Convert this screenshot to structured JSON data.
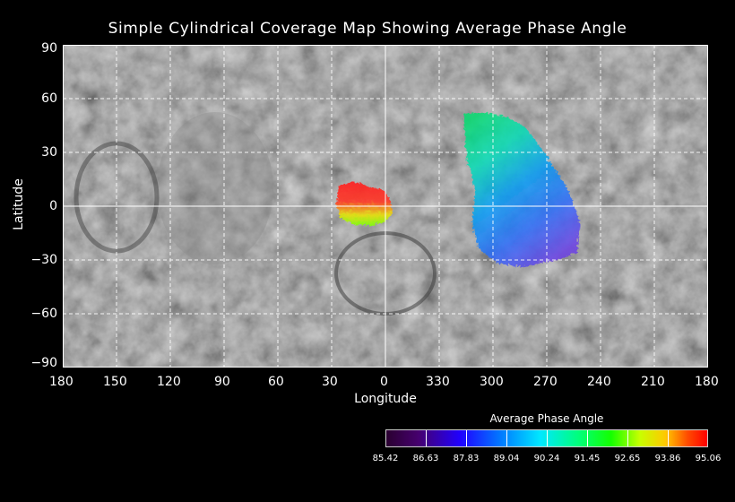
{
  "title": "Simple Cylindrical Coverage Map Showing Average Phase Angle",
  "axes": {
    "xlabel": "Longitude",
    "ylabel": "Latitude",
    "xticks": [
      "180",
      "150",
      "120",
      "90",
      "60",
      "30",
      "0",
      "330",
      "300",
      "270",
      "240",
      "210",
      "180"
    ],
    "yticks": [
      "90",
      "60",
      "30",
      "0",
      "−30",
      "−60",
      "−90"
    ]
  },
  "colorbar": {
    "title": "Average Phase Angle",
    "ticks": [
      "85.42",
      "86.63",
      "87.83",
      "89.04",
      "90.24",
      "91.45",
      "92.65",
      "93.86",
      "95.06"
    ]
  },
  "colors": {
    "background": "#000000",
    "grid": "#ffffff",
    "basemap": "#5a5a5a"
  }
}
